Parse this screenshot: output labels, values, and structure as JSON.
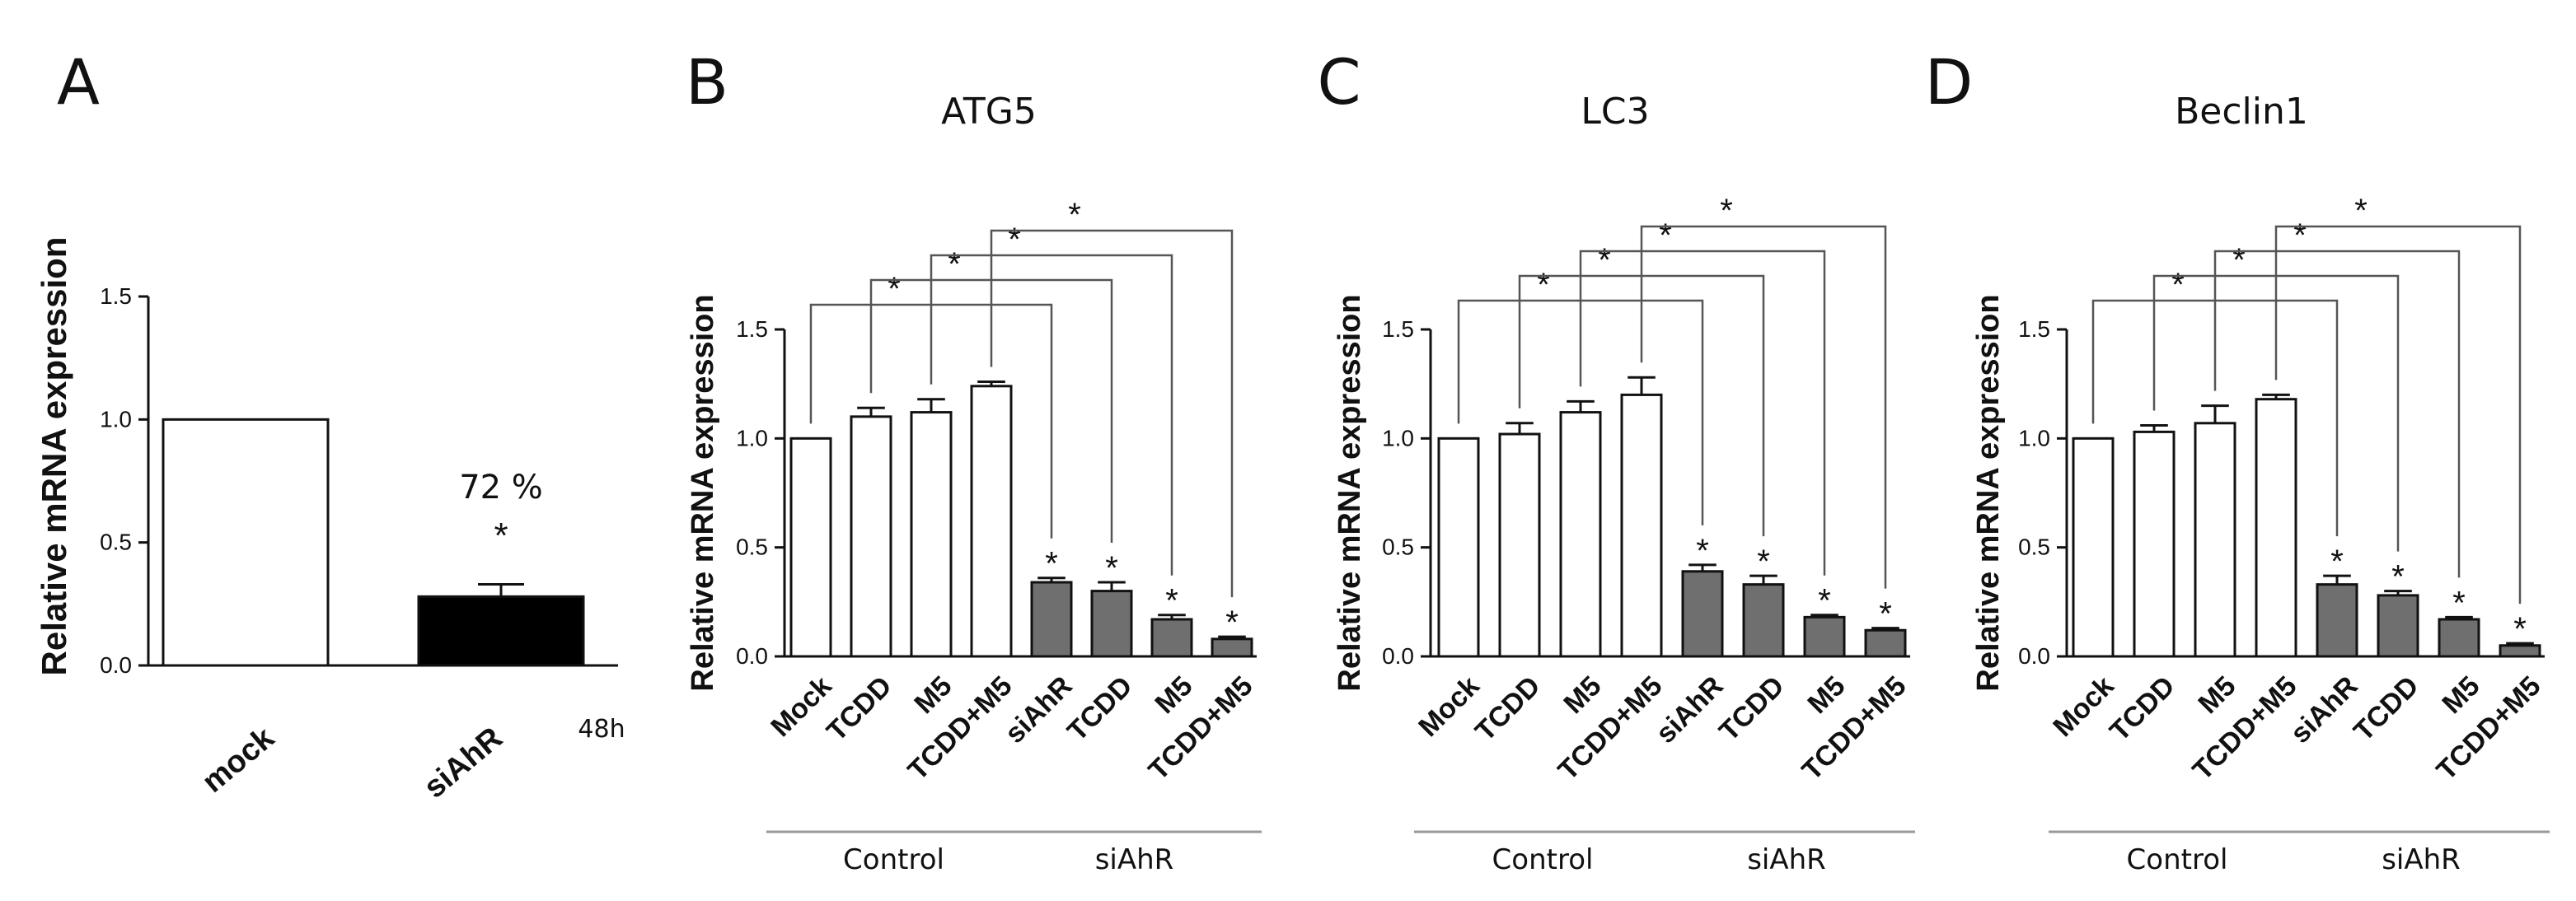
{
  "colors": {
    "ink": "#111111",
    "control_bar": "#ffffff",
    "siahr_bar": "#6f6f6f",
    "si_bar_A": "#000000",
    "group_line": "#9a9a9a",
    "sig_line": "#555555"
  },
  "chart_data": [
    {
      "panel": "A",
      "type": "bar",
      "title": "",
      "ylabel": "Relative mRNA expression",
      "ylim": [
        0,
        1.5
      ],
      "yticks": [
        "0.0",
        "0.5",
        "1.0",
        "1.5"
      ],
      "categories": [
        "mock",
        "siAhR"
      ],
      "values": [
        1.0,
        0.28
      ],
      "errors": [
        0,
        0.05
      ],
      "fills": [
        "white",
        "black"
      ],
      "annotations": {
        "percent": "72 %",
        "star": "*",
        "time": "48h"
      }
    },
    {
      "panel": "B",
      "type": "bar",
      "title": "ATG5",
      "ylabel": "Relative mRNA expression",
      "ylim": [
        0,
        1.5
      ],
      "yticks": [
        "0.0",
        "0.5",
        "1.0",
        "1.5"
      ],
      "categories": [
        "Mock",
        "TCDD",
        "M5",
        "TCDD+M5",
        "siAhR",
        "TCDD",
        "M5",
        "TCDD+M5"
      ],
      "values": [
        1.0,
        1.1,
        1.12,
        1.24,
        0.34,
        0.3,
        0.17,
        0.08
      ],
      "errors": [
        0,
        0.04,
        0.06,
        0.02,
        0.02,
        0.04,
        0.02,
        0.01
      ],
      "stars": [
        "",
        "",
        "",
        "",
        "*",
        "*",
        "*",
        "*"
      ],
      "groups": [
        {
          "label": "Control",
          "range": [
            0,
            3
          ]
        },
        {
          "label": "siAhR",
          "range": [
            4,
            7
          ]
        }
      ],
      "brackets": [
        {
          "from": 0,
          "to": 4,
          "star": "*"
        },
        {
          "from": 1,
          "to": 5,
          "star": "*"
        },
        {
          "from": 2,
          "to": 6,
          "star": "*"
        },
        {
          "from": 3,
          "to": 7,
          "star": "*"
        }
      ]
    },
    {
      "panel": "C",
      "type": "bar",
      "title": "LC3",
      "ylabel": "Relative mRNA expression",
      "ylim": [
        0,
        1.5
      ],
      "yticks": [
        "0.0",
        "0.5",
        "1.0",
        "1.5"
      ],
      "categories": [
        "Mock",
        "TCDD",
        "M5",
        "TCDD+M5",
        "siAhR",
        "TCDD",
        "M5",
        "TCDD+M5"
      ],
      "values": [
        1.0,
        1.02,
        1.12,
        1.2,
        0.39,
        0.33,
        0.18,
        0.12
      ],
      "errors": [
        0,
        0.05,
        0.05,
        0.08,
        0.03,
        0.04,
        0.01,
        0.01
      ],
      "stars": [
        "",
        "",
        "",
        "",
        "*",
        "*",
        "*",
        "*"
      ],
      "groups": [
        {
          "label": "Control",
          "range": [
            0,
            3
          ]
        },
        {
          "label": "siAhR",
          "range": [
            4,
            7
          ]
        }
      ],
      "brackets": [
        {
          "from": 0,
          "to": 4,
          "star": "*"
        },
        {
          "from": 1,
          "to": 5,
          "star": "*"
        },
        {
          "from": 2,
          "to": 6,
          "star": "*"
        },
        {
          "from": 3,
          "to": 7,
          "star": "*"
        }
      ]
    },
    {
      "panel": "D",
      "type": "bar",
      "title": "Beclin1",
      "ylabel": "Relative mRNA expression",
      "ylim": [
        0,
        1.5
      ],
      "yticks": [
        "0.0",
        "0.5",
        "1.0",
        "1.5"
      ],
      "categories": [
        "Mock",
        "TCDD",
        "M5",
        "TCDD+M5",
        "siAhR",
        "TCDD",
        "M5",
        "TCDD+M5"
      ],
      "values": [
        1.0,
        1.03,
        1.07,
        1.18,
        0.33,
        0.28,
        0.17,
        0.05
      ],
      "errors": [
        0,
        0.03,
        0.08,
        0.02,
        0.04,
        0.02,
        0.01,
        0.01
      ],
      "stars": [
        "",
        "",
        "",
        "",
        "*",
        "*",
        "*",
        "*"
      ],
      "groups": [
        {
          "label": "Control",
          "range": [
            0,
            3
          ]
        },
        {
          "label": "siAhR",
          "range": [
            4,
            7
          ]
        }
      ],
      "brackets": [
        {
          "from": 0,
          "to": 4,
          "star": "*"
        },
        {
          "from": 1,
          "to": 5,
          "star": "*"
        },
        {
          "from": 2,
          "to": 6,
          "star": "*"
        },
        {
          "from": 3,
          "to": 7,
          "star": "*"
        }
      ]
    }
  ],
  "panel_letters": [
    "A",
    "B",
    "C",
    "D"
  ]
}
